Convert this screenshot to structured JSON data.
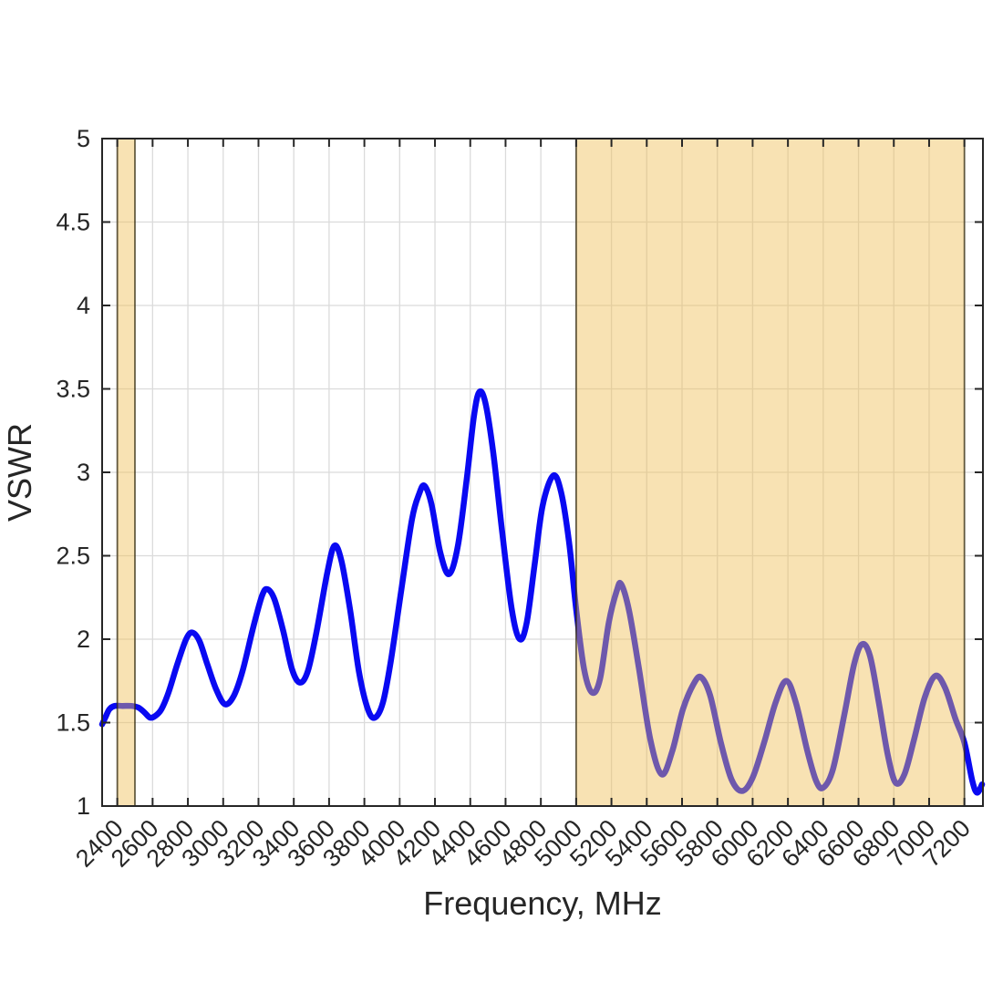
{
  "chart_data": {
    "type": "line",
    "title": "",
    "xlabel": "Frequency, MHz",
    "ylabel": "VSWR",
    "xlim": [
      2314,
      7305
    ],
    "ylim": [
      1,
      5
    ],
    "xticks": [
      2400,
      2600,
      2800,
      3000,
      3200,
      3400,
      3600,
      3800,
      4000,
      4200,
      4400,
      4600,
      4800,
      5000,
      5200,
      5400,
      5600,
      5800,
      6000,
      6200,
      6400,
      6600,
      6800,
      7000,
      7200
    ],
    "xtick_labels": [
      "2400",
      "2600",
      "2800",
      "3000",
      "3200",
      "3400",
      "3600",
      "3800",
      "4000",
      "4200",
      "4400",
      "4600",
      "4800",
      "5000",
      "5200",
      "5400",
      "5600",
      "5800",
      "6000",
      "6200",
      "6400",
      "6600",
      "6800",
      "7000",
      "7200"
    ],
    "xtick_angle_deg": 45,
    "yticks": [
      1,
      1.5,
      2,
      2.5,
      3,
      3.5,
      4,
      4.5,
      5
    ],
    "ytick_labels": [
      "1",
      "1.5",
      "2",
      "2.5",
      "3",
      "3.5",
      "4",
      "4.5",
      "5"
    ],
    "grid": true,
    "legend": "none",
    "series": [
      {
        "name": "vswr-trace",
        "color": "#0909F2",
        "line_width": 6.5,
        "x": [
          2314,
          2332,
          2355,
          2385,
          2430,
          2480,
          2520,
          2555,
          2585,
          2615,
          2650,
          2690,
          2740,
          2790,
          2825,
          2865,
          2910,
          2960,
          3010,
          3060,
          3110,
          3170,
          3220,
          3250,
          3290,
          3340,
          3390,
          3435,
          3480,
          3530,
          3590,
          3630,
          3670,
          3720,
          3770,
          3820,
          3860,
          3905,
          3950,
          4010,
          4070,
          4110,
          4140,
          4180,
          4230,
          4280,
          4330,
          4380,
          4420,
          4450,
          4485,
          4530,
          4580,
          4635,
          4680,
          4720,
          4765,
          4810,
          4870,
          4915,
          4960,
          5000,
          5045,
          5090,
          5135,
          5185,
          5230,
          5255,
          5300,
          5355,
          5420,
          5485,
          5545,
          5605,
          5670,
          5710,
          5760,
          5820,
          5880,
          5940,
          6000,
          6065,
          6130,
          6190,
          6245,
          6310,
          6360,
          6400,
          6455,
          6520,
          6575,
          6620,
          6665,
          6715,
          6765,
          6810,
          6860,
          6915,
          6975,
          7035,
          7090,
          7150,
          7200,
          7245,
          7272,
          7300
        ],
        "y": [
          1.49,
          1.53,
          1.58,
          1.6,
          1.6,
          1.6,
          1.59,
          1.56,
          1.53,
          1.54,
          1.58,
          1.68,
          1.85,
          2.0,
          2.04,
          1.99,
          1.85,
          1.7,
          1.61,
          1.66,
          1.81,
          2.07,
          2.26,
          2.3,
          2.24,
          2.05,
          1.82,
          1.74,
          1.81,
          2.05,
          2.4,
          2.56,
          2.47,
          2.17,
          1.8,
          1.58,
          1.53,
          1.62,
          1.87,
          2.3,
          2.72,
          2.87,
          2.92,
          2.81,
          2.52,
          2.39,
          2.56,
          2.96,
          3.33,
          3.48,
          3.42,
          3.12,
          2.65,
          2.18,
          2.0,
          2.1,
          2.45,
          2.8,
          2.98,
          2.88,
          2.58,
          2.18,
          1.82,
          1.68,
          1.76,
          2.1,
          2.29,
          2.33,
          2.17,
          1.83,
          1.4,
          1.19,
          1.33,
          1.58,
          1.74,
          1.77,
          1.66,
          1.38,
          1.16,
          1.09,
          1.17,
          1.38,
          1.62,
          1.75,
          1.62,
          1.33,
          1.15,
          1.11,
          1.22,
          1.55,
          1.85,
          1.97,
          1.9,
          1.62,
          1.31,
          1.14,
          1.19,
          1.4,
          1.65,
          1.78,
          1.71,
          1.52,
          1.38,
          1.15,
          1.08,
          1.13
        ]
      }
    ],
    "highlight_bands": [
      {
        "name": "band-2400-2500",
        "x_start": 2400,
        "x_end": 2500,
        "fill": "#EFBE53",
        "fill_opacity": 0.44,
        "edge": "#2E260B",
        "edge_opacity": 0.72
      },
      {
        "name": "band-5000-7200",
        "x_start": 5000,
        "x_end": 7200,
        "fill": "#EFBE53",
        "fill_opacity": 0.44,
        "edge": "#2E260B",
        "edge_opacity": 0.72
      }
    ],
    "colors": {
      "axes_frame": "#262626",
      "grid_line": "#DBDBDB",
      "background": "#FFFFFF",
      "text": "#262626"
    }
  }
}
